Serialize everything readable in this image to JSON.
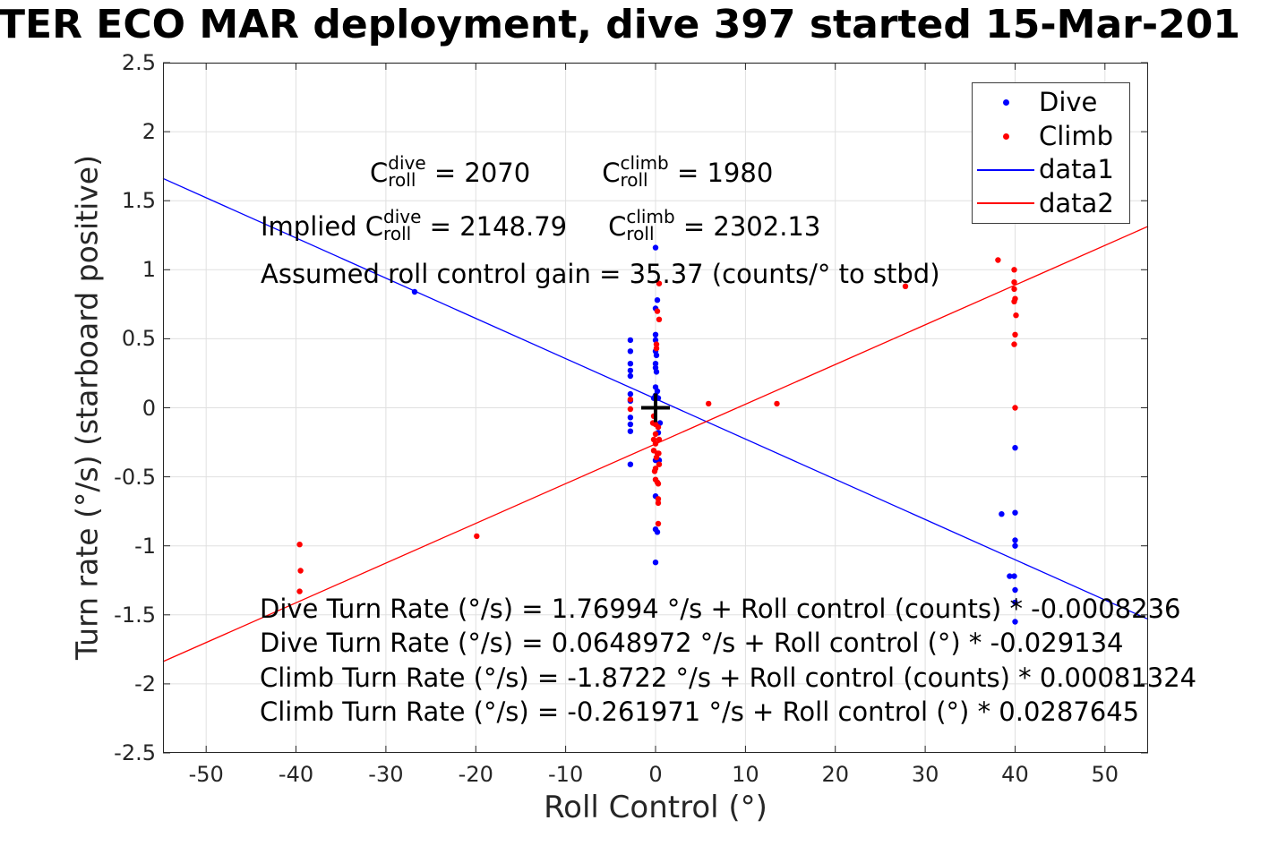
{
  "title": "TER ECO MAR deployment, dive 397 started 15-Mar-201",
  "chart_data": {
    "type": "scatter",
    "title": "TER ECO MAR deployment, dive 397 started 15-Mar-201",
    "xlabel": "Roll Control (°)",
    "ylabel": "Turn rate (°/s) (starboard positive)",
    "xlim": [
      -54.8,
      54.8
    ],
    "ylim": [
      -2.5,
      2.5
    ],
    "grid": true,
    "legend_position": "top-right",
    "xtick_values": [
      -50,
      -40,
      -30,
      -20,
      -10,
      0,
      10,
      20,
      30,
      40,
      50
    ],
    "xtick_labels": [
      "-50",
      "-40",
      "-30",
      "-20",
      "-10",
      "0",
      "10",
      "20",
      "30",
      "40",
      "50"
    ],
    "ytick_values": [
      -2.5,
      -2,
      -1.5,
      -1,
      -0.5,
      0,
      0.5,
      1,
      1.5,
      2,
      2.5
    ],
    "ytick_labels": [
      "-2.5",
      "-2",
      "-1.5",
      "-1",
      "-0.5",
      "0",
      "0.5",
      "1",
      "1.5",
      "2",
      "2.5"
    ],
    "series": [
      {
        "name": "Dive",
        "type": "scatter",
        "color": "#0000ff",
        "points": [
          [
            -2.8,
            0.49
          ],
          [
            -2.8,
            0.41
          ],
          [
            -2.8,
            0.32
          ],
          [
            -2.8,
            0.27
          ],
          [
            -2.8,
            0.23
          ],
          [
            -2.8,
            0.1
          ],
          [
            -2.8,
            0.05
          ],
          [
            -2.8,
            -0.07
          ],
          [
            -2.8,
            -0.12
          ],
          [
            -2.8,
            -0.17
          ],
          [
            -2.8,
            -0.41
          ],
          [
            0,
            1.16
          ],
          [
            0.2,
            0.78
          ],
          [
            0,
            0.72
          ],
          [
            0,
            0.53
          ],
          [
            0,
            0.49
          ],
          [
            0,
            0.41
          ],
          [
            0.1,
            0.38
          ],
          [
            0,
            0.32
          ],
          [
            0,
            0.29
          ],
          [
            0.1,
            0.26
          ],
          [
            0,
            0.15
          ],
          [
            0.2,
            0.12
          ],
          [
            0,
            0.09
          ],
          [
            -0.2,
            0.07
          ],
          [
            0.3,
            0.07
          ],
          [
            0.5,
            -0.11
          ],
          [
            0.3,
            -0.18
          ],
          [
            0,
            -0.38
          ],
          [
            0.4,
            -0.38
          ],
          [
            0,
            -0.64
          ],
          [
            0,
            -0.88
          ],
          [
            0.2,
            -0.9
          ],
          [
            0,
            -1.12
          ],
          [
            -26.8,
            0.84
          ],
          [
            40,
            -0.29
          ],
          [
            38.5,
            -0.77
          ],
          [
            40,
            -0.76
          ],
          [
            40,
            -0.96
          ],
          [
            40,
            -1.0
          ],
          [
            39.4,
            -1.22
          ],
          [
            39.9,
            -1.22
          ],
          [
            40,
            -1.32
          ],
          [
            40,
            -1.41
          ],
          [
            40,
            -1.55
          ]
        ]
      },
      {
        "name": "Climb",
        "type": "scatter",
        "color": "#ff0000",
        "points": [
          [
            -39.6,
            -0.99
          ],
          [
            -39.5,
            -1.18
          ],
          [
            -39.6,
            -1.33
          ],
          [
            -19.9,
            -0.93
          ],
          [
            -2.8,
            0.06
          ],
          [
            -2.8,
            -0.01
          ],
          [
            0.4,
            0.9
          ],
          [
            0.2,
            0.7
          ],
          [
            0.4,
            0.64
          ],
          [
            0.1,
            0.46
          ],
          [
            0.1,
            0.43
          ],
          [
            -0.2,
            -0.06
          ],
          [
            -0.3,
            -0.11
          ],
          [
            0,
            -0.12
          ],
          [
            0.3,
            -0.14
          ],
          [
            0,
            -0.19
          ],
          [
            -0.2,
            -0.23
          ],
          [
            0.4,
            -0.23
          ],
          [
            0,
            -0.26
          ],
          [
            -0.2,
            -0.31
          ],
          [
            0.2,
            -0.33
          ],
          [
            0.35,
            -0.33
          ],
          [
            0.1,
            -0.36
          ],
          [
            0.4,
            -0.41
          ],
          [
            0,
            -0.44
          ],
          [
            -0.1,
            -0.46
          ],
          [
            0,
            -0.52
          ],
          [
            0.2,
            -0.54
          ],
          [
            0.3,
            -0.55
          ],
          [
            0.3,
            -0.66
          ],
          [
            0.3,
            -0.69
          ],
          [
            0.3,
            -0.84
          ],
          [
            5.9,
            0.03
          ],
          [
            13.5,
            0.03
          ],
          [
            27.8,
            0.88
          ],
          [
            38.1,
            1.07
          ],
          [
            39.9,
            1.0
          ],
          [
            39.9,
            0.91
          ],
          [
            39.9,
            0.86
          ],
          [
            40,
            0.79
          ],
          [
            39.9,
            0.77
          ],
          [
            40.1,
            0.67
          ],
          [
            40,
            0.53
          ],
          [
            39.9,
            0.46
          ],
          [
            40,
            0.0
          ]
        ]
      },
      {
        "name": "data1",
        "type": "line",
        "color": "#0000ff",
        "intercept": 0.0648972,
        "slope": -0.029134
      },
      {
        "name": "data2",
        "type": "line",
        "color": "#ff0000",
        "intercept": -0.261971,
        "slope": 0.0287645
      }
    ],
    "reference_marker": {
      "shape": "plus",
      "x": 0,
      "y": 0,
      "color": "#000000"
    }
  },
  "legend": {
    "items": [
      {
        "label": "Dive",
        "marker": "dot",
        "color": "#0000ff"
      },
      {
        "label": "Climb",
        "marker": "dot",
        "color": "#ff0000"
      },
      {
        "label": "data1",
        "marker": "line",
        "color": "#0000ff"
      },
      {
        "label": "data2",
        "marker": "line",
        "color": "#ff0000"
      }
    ]
  },
  "annotations": {
    "c_base": "C",
    "sup_dive": "dive",
    "sup_climb": "climb",
    "sub_roll": "roll",
    "row1_eq1": " = 2070",
    "row1_eq2": " = 1980",
    "row2_prefix": "Implied ",
    "row2_eq1": " = 2148.79",
    "row2_eq2": " = 2302.13",
    "row3": "Assumed roll control gain = 35.37 (counts/° to stbd)"
  },
  "equations": [
    "Dive Turn Rate (°/s) = 1.76994 °/s + Roll control (counts) * -0.0008236",
    "Dive Turn Rate (°/s) = 0.0648972 °/s + Roll control (°) * -0.029134",
    "Climb Turn Rate (°/s) = -1.8722 °/s + Roll control (counts) * 0.00081324",
    "Climb Turn Rate (°/s) = -0.261971 °/s + Roll control (°) * 0.0287645"
  ],
  "colors": {
    "dive": "#0000ff",
    "climb": "#ff0000",
    "grid": "#e0e0e0",
    "axis": "#262626",
    "reference": "#000000"
  }
}
